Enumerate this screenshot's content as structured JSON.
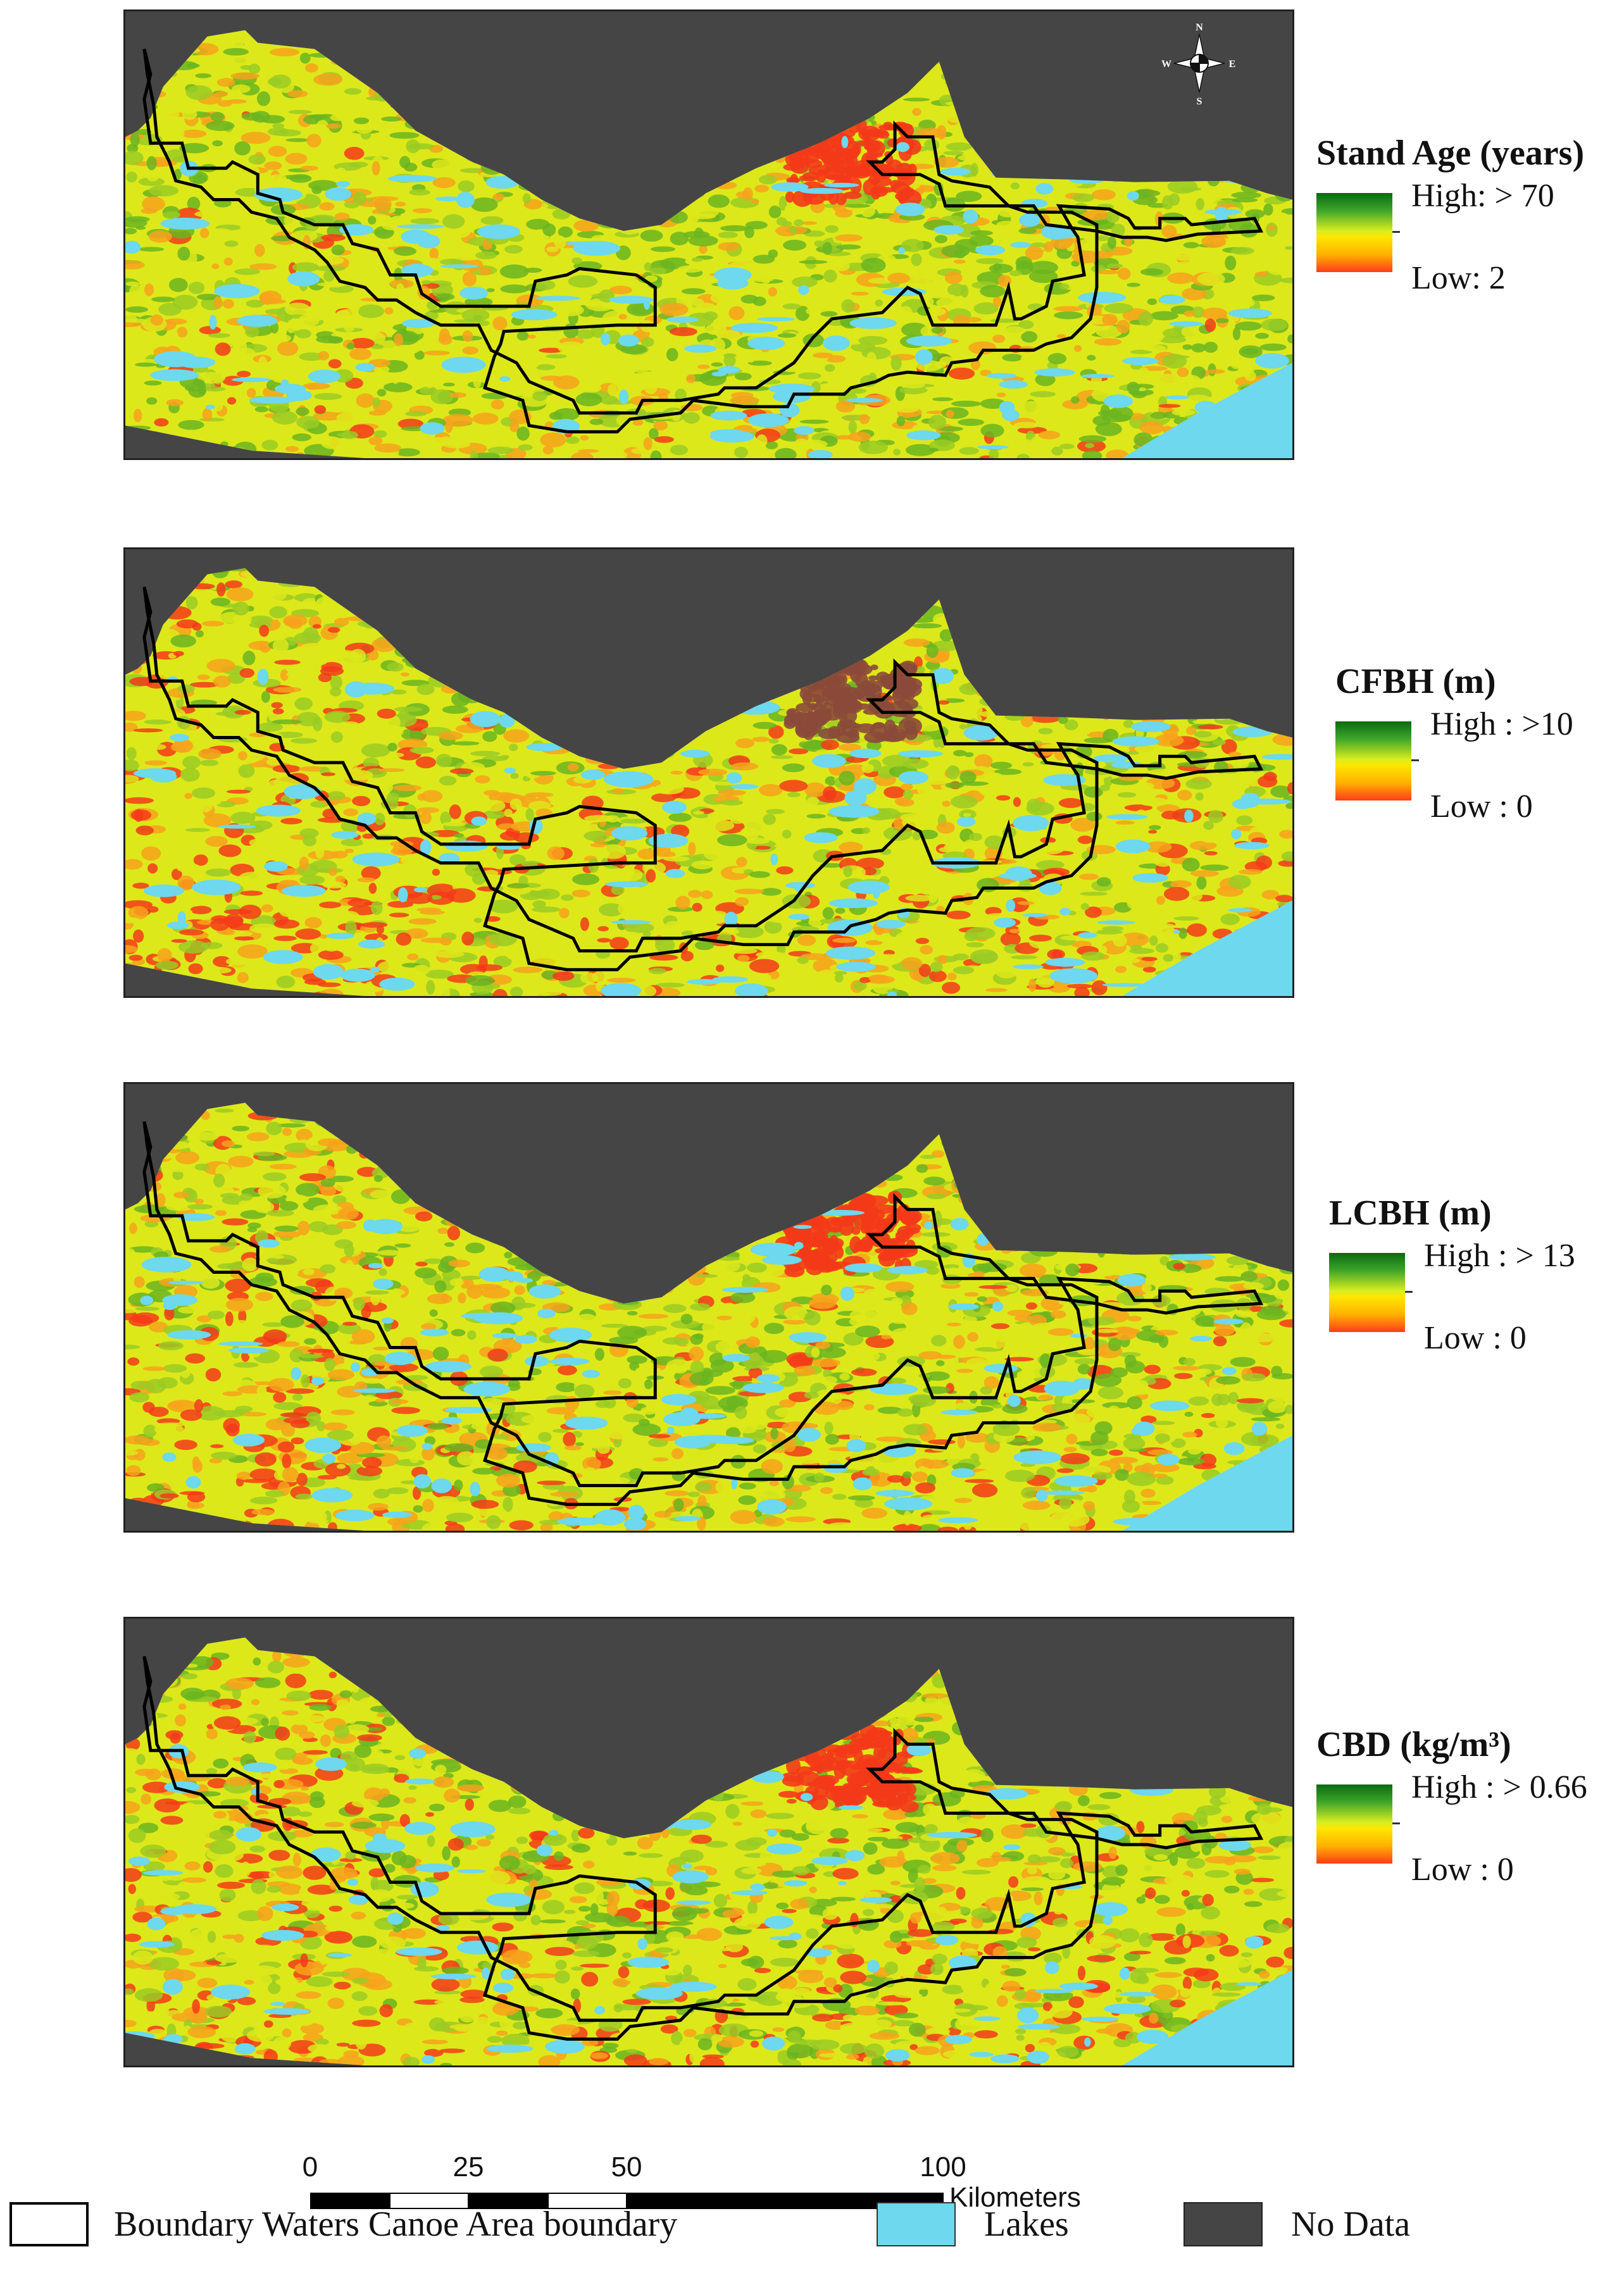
{
  "compass": {
    "n": "N",
    "s": "S",
    "e": "E",
    "w": "W"
  },
  "colors": {
    "no_data": "#454545",
    "lake": "#6dd8ee",
    "forest_green": "#6ab521",
    "forest_yellow": "#dde81a",
    "forest_orange": "#f7a21c",
    "forest_red": "#f43a1a",
    "boundary": "#000000"
  },
  "panels": [
    {
      "name": "stand-age",
      "legend_title": "Stand Age (years)",
      "high": "High: > 70",
      "low": "Low: 2",
      "red_level": 0.18
    },
    {
      "name": "cfbh",
      "legend_title": "CFBH (m)",
      "high": "High : >10",
      "low": "Low : 0",
      "red_level": 0.55
    },
    {
      "name": "lcbh",
      "legend_title": "LCBH (m)",
      "high": "High : > 13",
      "low": "Low : 0",
      "red_level": 0.4
    },
    {
      "name": "cbd",
      "legend_title": "CBD (kg/m³)",
      "high": "High : > 0.66",
      "low": "Low : 0",
      "red_level": 0.45
    }
  ],
  "scale_bar": {
    "ticks": [
      "0",
      "25",
      "50",
      "100"
    ],
    "unit": "Kilometers"
  },
  "legend": {
    "boundary": "Boundary Waters Canoe Area boundary",
    "lakes": "Lakes",
    "no_data": "No Data"
  }
}
